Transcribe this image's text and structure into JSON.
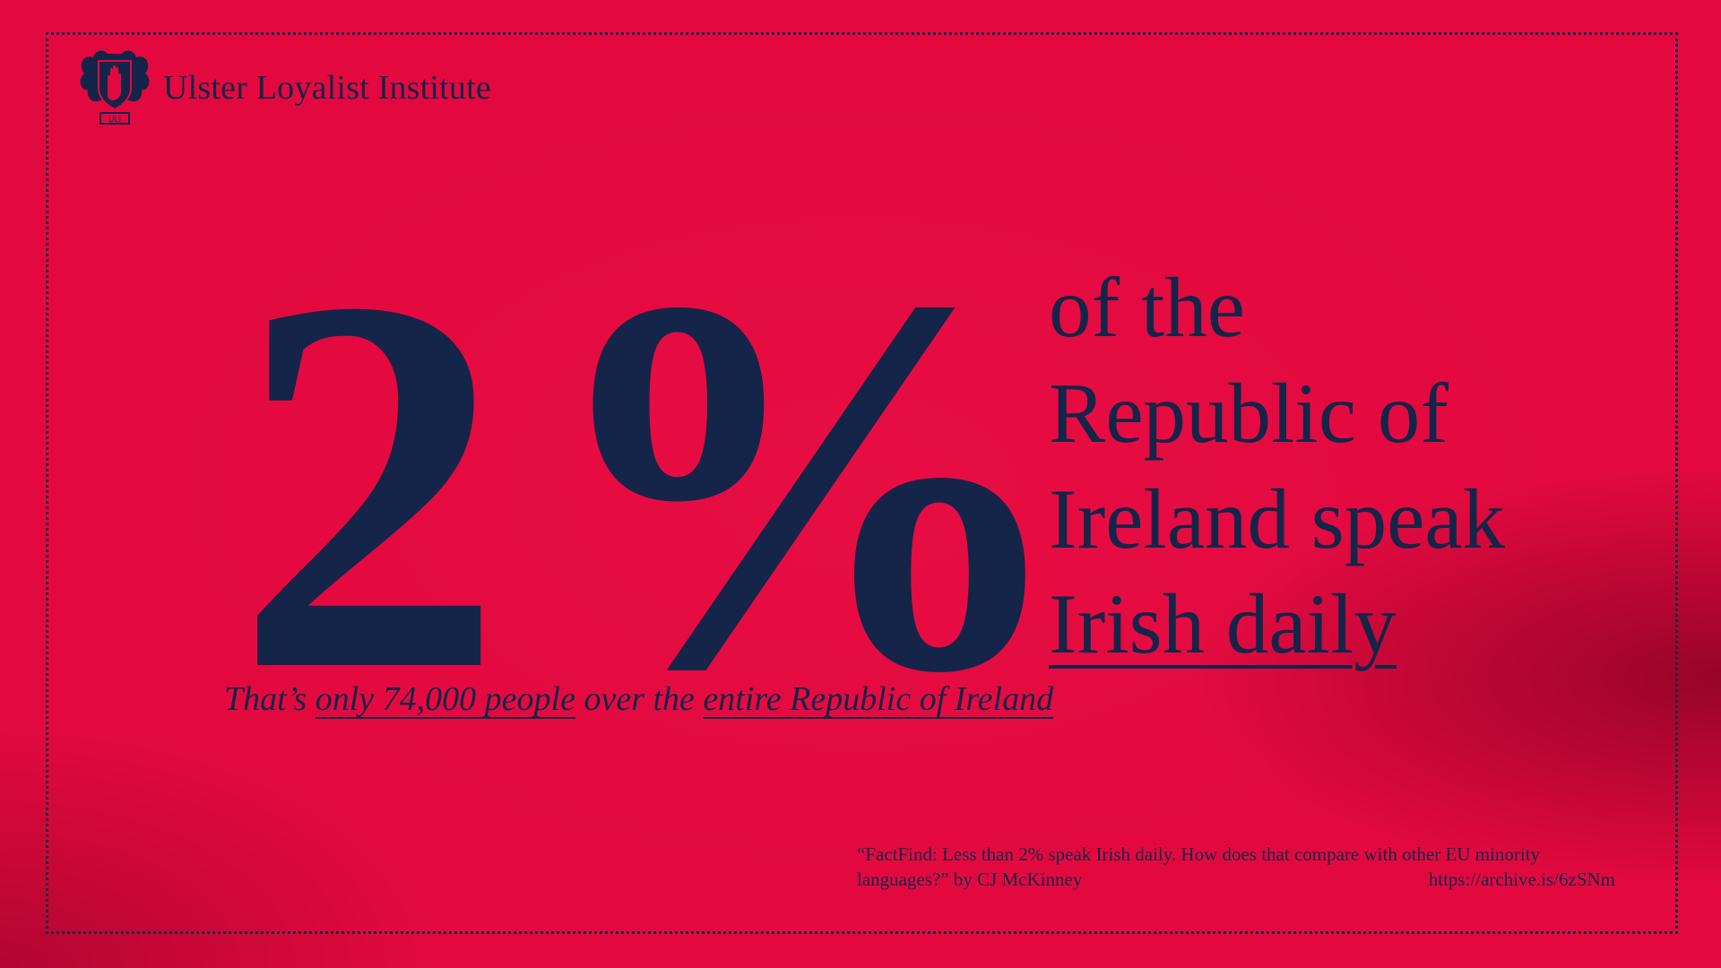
{
  "brand": {
    "name": "Ulster Loyalist Institute",
    "crest_text": "ULI"
  },
  "stat": {
    "number": "2",
    "percent_sign": "%"
  },
  "headline": {
    "line1": "of the",
    "line2": "Republic of",
    "line3": "Ireland speak",
    "line4": "Irish daily"
  },
  "subline": {
    "part1": "That’s ",
    "part2_underlined": "only 74,000 people",
    "part3": " over the ",
    "part4_underlined": "entire Republic of Ireland"
  },
  "citation": {
    "line1": "“FactFind: Less than 2% speak Irish daily. How does that compare with other EU minority",
    "line2": "languages?” by CJ McKinney",
    "url": "https://archive.is/6zSNm"
  },
  "colors": {
    "background": "#e3093f",
    "ink": "#152449"
  },
  "icons": {
    "crest": "red-hand-crest-icon"
  }
}
